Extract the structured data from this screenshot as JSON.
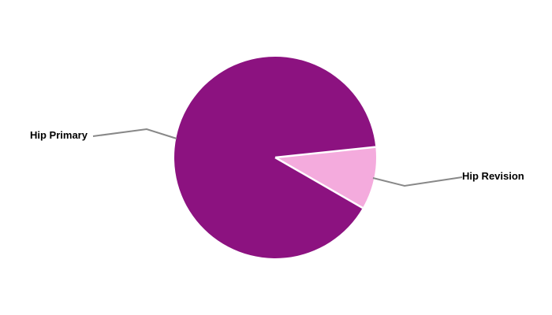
{
  "chart_data": {
    "type": "pie",
    "title": "",
    "categories": [
      "Hip Primary",
      "Hip Revision"
    ],
    "values": [
      90,
      10
    ],
    "values_note": "percent share estimated from slice angles (324 deg and 36 deg)",
    "series_colors": [
      "#8C1280",
      "#F4ABDD"
    ],
    "slice_separator_color": "#FFFFFF",
    "leader_line_color": "#888888",
    "label_color": "#000000",
    "background_color": "#FFFFFF",
    "legend_position": "none",
    "labels_style": "external callouts with bent leader lines",
    "start_angle_deg": -30,
    "direction": "clockwise"
  }
}
